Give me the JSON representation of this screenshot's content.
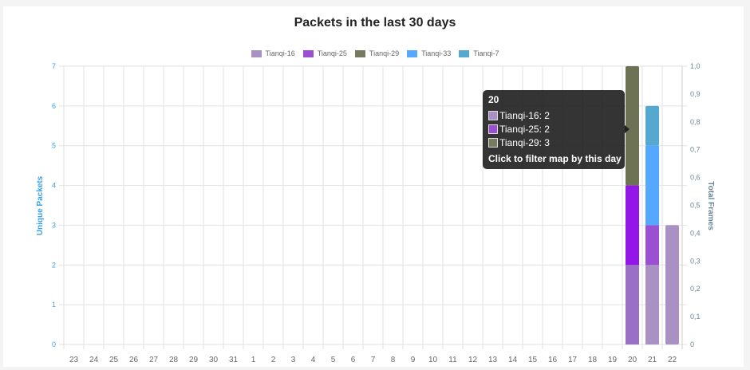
{
  "chart_data": {
    "type": "bar",
    "stacked": true,
    "title": "Packets in the last 30 days",
    "ylabel": "Unique Packets",
    "y2label": "Total Frames",
    "ylim": [
      0,
      7
    ],
    "y2lim": [
      0,
      1
    ],
    "yticks": [
      "0",
      "1",
      "2",
      "3",
      "4",
      "5",
      "6",
      "7"
    ],
    "y2ticks": [
      "0",
      "0,1",
      "0,2",
      "0,3",
      "0,4",
      "0,5",
      "0,6",
      "0,7",
      "0,8",
      "0,9",
      "1,0"
    ],
    "categories": [
      "23",
      "24",
      "25",
      "26",
      "27",
      "28",
      "29",
      "30",
      "31",
      "1",
      "2",
      "3",
      "4",
      "5",
      "6",
      "7",
      "8",
      "9",
      "10",
      "11",
      "12",
      "13",
      "14",
      "15",
      "16",
      "17",
      "18",
      "19",
      "20",
      "21",
      "22"
    ],
    "legend_position": "top",
    "series": [
      {
        "name": "Tianqi-16",
        "color": "#a991c4",
        "values": [
          0,
          0,
          0,
          0,
          0,
          0,
          0,
          0,
          0,
          0,
          0,
          0,
          0,
          0,
          0,
          0,
          0,
          0,
          0,
          0,
          0,
          0,
          0,
          0,
          0,
          0,
          0,
          0,
          2,
          2,
          3
        ]
      },
      {
        "name": "Tianqi-25",
        "color": "#9b4fd1",
        "values": [
          0,
          0,
          0,
          0,
          0,
          0,
          0,
          0,
          0,
          0,
          0,
          0,
          0,
          0,
          0,
          0,
          0,
          0,
          0,
          0,
          0,
          0,
          0,
          0,
          0,
          0,
          0,
          0,
          2,
          1,
          0
        ]
      },
      {
        "name": "Tianqi-29",
        "color": "#767a5e",
        "values": [
          0,
          0,
          0,
          0,
          0,
          0,
          0,
          0,
          0,
          0,
          0,
          0,
          0,
          0,
          0,
          0,
          0,
          0,
          0,
          0,
          0,
          0,
          0,
          0,
          0,
          0,
          0,
          0,
          3,
          0,
          0
        ]
      },
      {
        "name": "Tianqi-33",
        "color": "#55a8ff",
        "values": [
          0,
          0,
          0,
          0,
          0,
          0,
          0,
          0,
          0,
          0,
          0,
          0,
          0,
          0,
          0,
          0,
          0,
          0,
          0,
          0,
          0,
          0,
          0,
          0,
          0,
          0,
          0,
          0,
          0,
          2,
          0
        ]
      },
      {
        "name": "Tianqi-7",
        "color": "#55a9d0",
        "values": [
          0,
          0,
          0,
          0,
          0,
          0,
          0,
          0,
          0,
          0,
          0,
          0,
          0,
          0,
          0,
          0,
          0,
          0,
          0,
          0,
          0,
          0,
          0,
          0,
          0,
          0,
          0,
          0,
          0,
          1,
          0
        ]
      }
    ],
    "hover_colors": {
      "Tianqi-16": "#9a70c6",
      "Tianqi-25": "#9315e8",
      "Tianqi-29": "#6d7254"
    },
    "hovered_index": 28
  },
  "tooltip": {
    "title": "20",
    "rows": [
      "Tianqi-16: 2",
      "Tianqi-25: 2",
      "Tianqi-29: 3"
    ],
    "footer": "Click to filter map by this day"
  }
}
